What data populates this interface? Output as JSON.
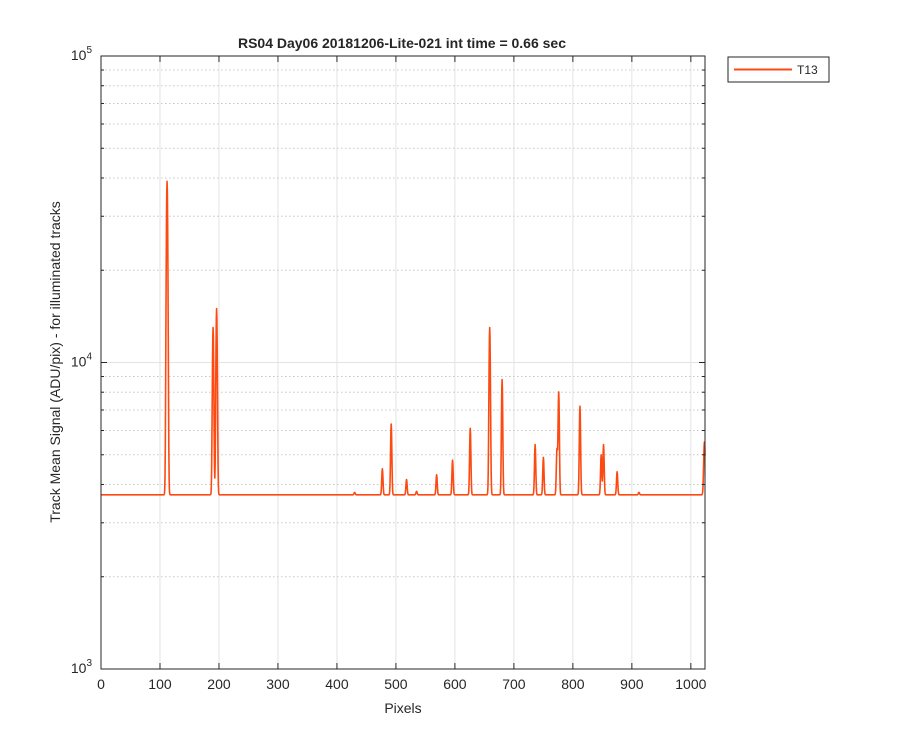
{
  "chart_data": {
    "type": "line",
    "title": "RS04 Day06 20181206-Lite-021 int time = 0.66 sec",
    "xlabel": "Pixels",
    "ylabel": "Track Mean Signal (ADU/pix) - for illuminated tracks",
    "xlim": [
      0,
      1024
    ],
    "ylim": [
      1000,
      100000
    ],
    "yscale": "log",
    "grid": true,
    "legend_position": "outside-top-right",
    "x_ticks": [
      0,
      100,
      200,
      300,
      400,
      500,
      600,
      700,
      800,
      900,
      1000
    ],
    "x_tick_labels": [
      "0",
      "100",
      "200",
      "300",
      "400",
      "500",
      "600",
      "700",
      "800",
      "900",
      "1000"
    ],
    "y_ticks": [
      {
        "value": 1000,
        "base": "10",
        "exp": "3"
      },
      {
        "value": 10000,
        "base": "10",
        "exp": "4"
      },
      {
        "value": 100000,
        "base": "10",
        "exp": "5"
      }
    ],
    "baseline": 3700,
    "series": [
      {
        "name": "T13",
        "color": "#fc4a12",
        "peaks": [
          {
            "x": 112,
            "y": 39000,
            "width": 1.2
          },
          {
            "x": 190,
            "y": 13000,
            "width": 1.1
          },
          {
            "x": 196,
            "y": 15000,
            "width": 1.1
          },
          {
            "x": 430,
            "y": 3770,
            "width": 1.0
          },
          {
            "x": 477,
            "y": 4500,
            "width": 1.0
          },
          {
            "x": 492,
            "y": 6300,
            "width": 1.0
          },
          {
            "x": 518,
            "y": 4150,
            "width": 1.0
          },
          {
            "x": 535,
            "y": 3800,
            "width": 1.0
          },
          {
            "x": 569,
            "y": 4300,
            "width": 1.0
          },
          {
            "x": 596,
            "y": 4800,
            "width": 1.0
          },
          {
            "x": 626,
            "y": 6100,
            "width": 1.0
          },
          {
            "x": 659,
            "y": 13000,
            "width": 1.1
          },
          {
            "x": 680,
            "y": 8800,
            "width": 1.0
          },
          {
            "x": 736,
            "y": 5400,
            "width": 1.0
          },
          {
            "x": 750,
            "y": 4900,
            "width": 1.0
          },
          {
            "x": 773,
            "y": 5200,
            "width": 1.0
          },
          {
            "x": 776,
            "y": 8000,
            "width": 1.0
          },
          {
            "x": 812,
            "y": 7200,
            "width": 1.0
          },
          {
            "x": 848,
            "y": 5000,
            "width": 1.0
          },
          {
            "x": 852,
            "y": 5400,
            "width": 1.0
          },
          {
            "x": 875,
            "y": 4400,
            "width": 1.0
          },
          {
            "x": 912,
            "y": 3770,
            "width": 1.0
          },
          {
            "x": 1023,
            "y": 5500,
            "width": 1.2
          }
        ]
      }
    ]
  }
}
